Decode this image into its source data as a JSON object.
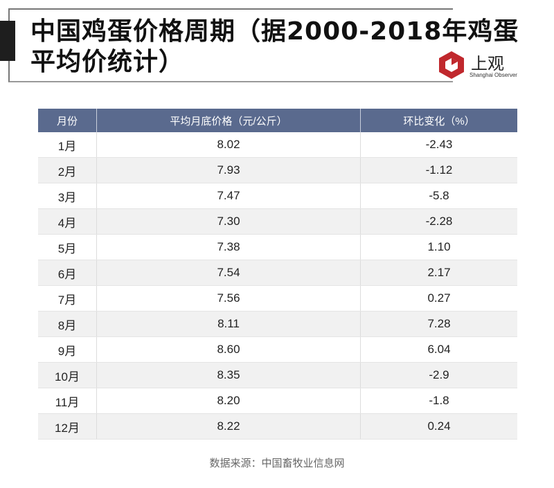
{
  "title": "中国鸡蛋价格周期（据2000-2018年鸡蛋平均价统计）",
  "logo": {
    "name": "上观",
    "subtitle": "Shanghai Observer",
    "color": "#c0282d"
  },
  "chart_data": {
    "type": "table",
    "columns": [
      "月份",
      "平均月底价格（元/公斤）",
      "环比变化（%）"
    ],
    "rows": [
      [
        "1月",
        "8.02",
        "-2.43"
      ],
      [
        "2月",
        "7.93",
        "-1.12"
      ],
      [
        "3月",
        "7.47",
        "-5.8"
      ],
      [
        "4月",
        "7.30",
        "-2.28"
      ],
      [
        "5月",
        "7.38",
        "1.10"
      ],
      [
        "6月",
        "7.54",
        "2.17"
      ],
      [
        "7月",
        "7.56",
        "0.27"
      ],
      [
        "8月",
        "8.11",
        "7.28"
      ],
      [
        "9月",
        "8.60",
        "6.04"
      ],
      [
        "10月",
        "8.35",
        "-2.9"
      ],
      [
        "11月",
        "8.20",
        "-1.8"
      ],
      [
        "12月",
        "8.22",
        "0.24"
      ]
    ],
    "header_color": "#5a6a8e"
  },
  "source": "数据来源：中国畜牧业信息网"
}
